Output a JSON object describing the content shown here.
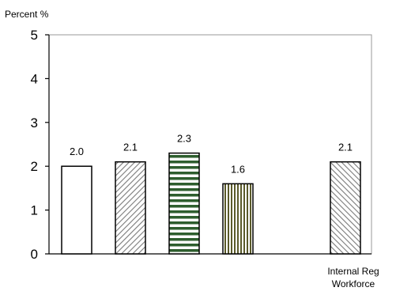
{
  "chart_data": {
    "type": "bar",
    "ylabel": "Percent %",
    "ylim": [
      0,
      5
    ],
    "yticks": [
      0,
      1,
      2,
      3,
      4,
      5
    ],
    "grid": false,
    "categories": [
      "",
      "",
      "",
      "",
      "",
      "Internal Reg Workforce"
    ],
    "category_lines": [
      [],
      [],
      [],
      [],
      [],
      [
        "Internal Reg",
        "Workforce"
      ]
    ],
    "values": [
      2.0,
      2.1,
      2.3,
      1.6,
      null,
      2.1
    ],
    "value_labels": [
      "2.0",
      "2.1",
      "2.3",
      "1.6",
      "",
      "2.1"
    ],
    "patterns": [
      "solid-white",
      "diagonal-hatch",
      "horizontal-stripes-green",
      "vertical-stripes-olive",
      "none",
      "diagonal-hatch-reverse"
    ],
    "colors": {
      "outline": "#000000",
      "hatch": "#7a7a7a",
      "stripe_green": "#2e5e2e",
      "stripe_olive": "#5a5a2a"
    }
  }
}
